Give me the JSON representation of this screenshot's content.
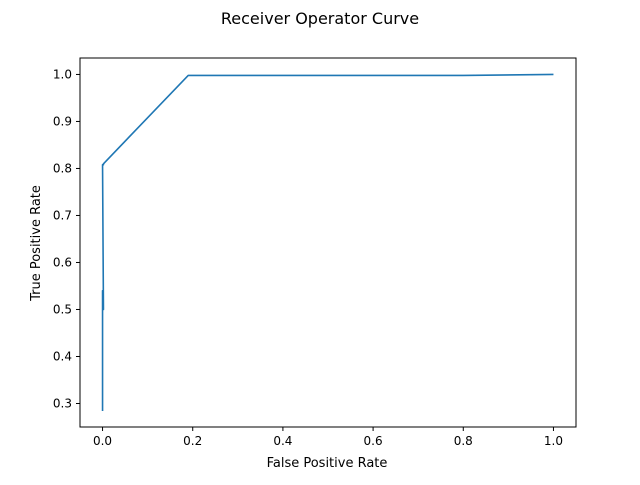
{
  "chart_data": {
    "type": "line",
    "title": "Receiver Operator Curve",
    "xlabel": "False Positive Rate",
    "ylabel": "True Positive Rate",
    "xlim": [
      -0.05,
      1.05
    ],
    "ylim": [
      0.25,
      1.035
    ],
    "xticks": [
      0.0,
      0.2,
      0.4,
      0.6,
      0.8,
      1.0
    ],
    "xtick_labels": [
      "0.0",
      "0.2",
      "0.4",
      "0.6",
      "0.8",
      "1.0"
    ],
    "yticks": [
      0.3,
      0.4,
      0.5,
      0.6,
      0.7,
      0.8,
      0.9,
      1.0
    ],
    "ytick_labels": [
      "0.3",
      "0.4",
      "0.5",
      "0.6",
      "0.7",
      "0.8",
      "0.9",
      "1.0"
    ],
    "grid": false,
    "legend": "none",
    "series": [
      {
        "color": "#1f77b4",
        "x": [
          0.0,
          0.0,
          0.0,
          0.0,
          0.002,
          0.0,
          0.002,
          0.002,
          0.19,
          0.8,
          1.0
        ],
        "y": [
          0.284,
          0.336,
          0.44,
          0.54,
          0.5,
          0.808,
          0.808,
          0.81,
          0.998,
          0.998,
          1.0
        ]
      }
    ]
  }
}
